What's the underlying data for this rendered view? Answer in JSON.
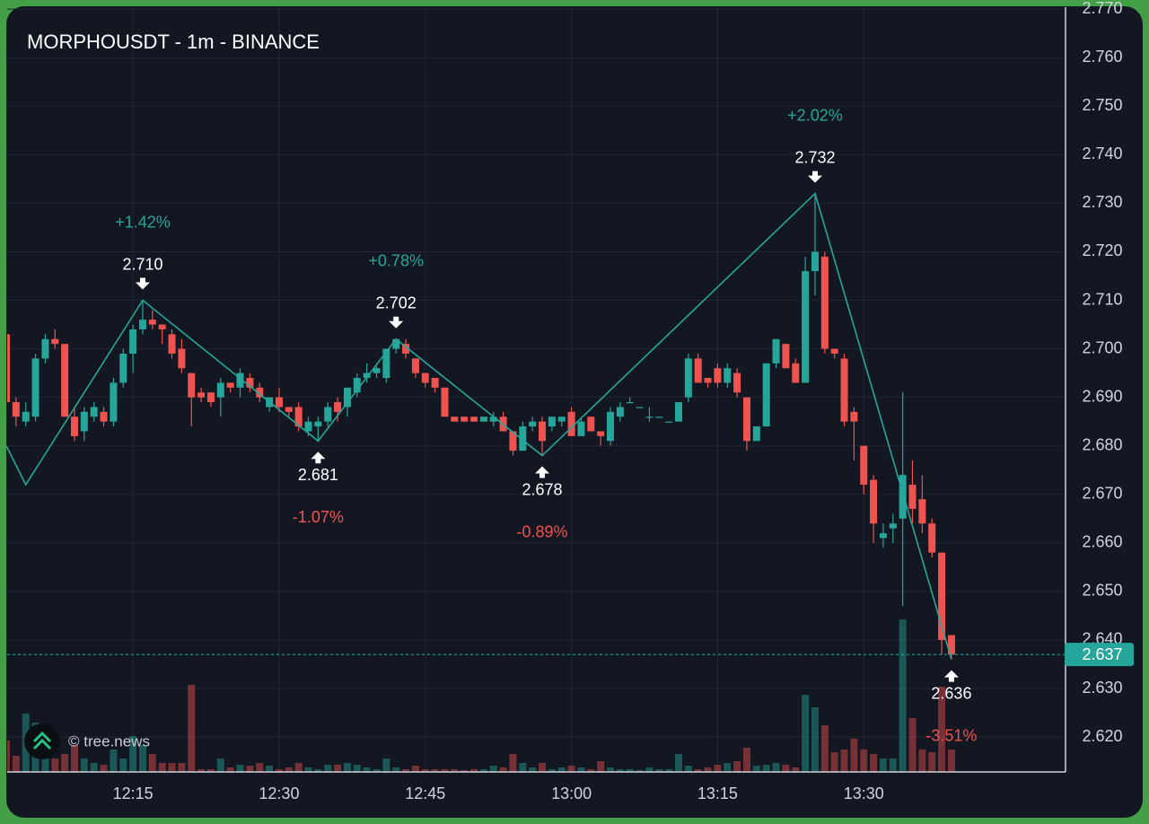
{
  "chart_data": {
    "type": "candlestick",
    "title": "MORPHOUSDT - 1m - BINANCE",
    "watermark": "© tree.news",
    "up_color": "#26a69a",
    "down_color": "#ef5350",
    "x": [
      "12:02",
      "12:03",
      "12:04",
      "12:05",
      "12:06",
      "12:07",
      "12:08",
      "12:09",
      "12:10",
      "12:11",
      "12:12",
      "12:13",
      "12:14",
      "12:15",
      "12:16",
      "12:17",
      "12:18",
      "12:19",
      "12:20",
      "12:21",
      "12:22",
      "12:23",
      "12:24",
      "12:25",
      "12:26",
      "12:27",
      "12:28",
      "12:29",
      "12:30",
      "12:31",
      "12:32",
      "12:33",
      "12:34",
      "12:35",
      "12:36",
      "12:37",
      "12:38",
      "12:39",
      "12:40",
      "12:41",
      "12:42",
      "12:43",
      "12:44",
      "12:45",
      "12:46",
      "12:47",
      "12:48",
      "12:49",
      "12:50",
      "12:51",
      "12:52",
      "12:53",
      "12:54",
      "12:55",
      "12:56",
      "12:57",
      "12:58",
      "12:59",
      "13:00",
      "13:01",
      "13:02",
      "13:03",
      "13:04",
      "13:05",
      "13:06",
      "13:07",
      "13:08",
      "13:09",
      "13:10",
      "13:11",
      "13:12",
      "13:13",
      "13:14",
      "13:15",
      "13:16",
      "13:17",
      "13:18",
      "13:19",
      "13:20",
      "13:21",
      "13:22",
      "13:23",
      "13:24",
      "13:25",
      "13:26",
      "13:27",
      "13:28",
      "13:29",
      "13:30",
      "13:31",
      "13:32",
      "13:33",
      "13:34",
      "13:35",
      "13:36",
      "13:37",
      "13:38",
      "13:39"
    ],
    "open": [
      2.703,
      2.689,
      2.685,
      2.686,
      2.698,
      2.702,
      2.701,
      2.686,
      2.683,
      2.686,
      2.687,
      2.685,
      2.693,
      2.699,
      2.704,
      2.706,
      2.705,
      2.703,
      2.7,
      2.695,
      2.691,
      2.691,
      2.69,
      2.693,
      2.692,
      2.694,
      2.692,
      2.688,
      2.69,
      2.688,
      2.688,
      2.683,
      2.684,
      2.685,
      2.689,
      2.688,
      2.691,
      2.694,
      2.695,
      2.694,
      2.7,
      2.701,
      2.698,
      2.695,
      2.694,
      2.692,
      2.686,
      2.686,
      2.686,
      2.685,
      2.685,
      2.686,
      2.683,
      2.679,
      2.684,
      2.685,
      2.684,
      2.685,
      2.687,
      2.682,
      2.686,
      2.683,
      2.681,
      2.686,
      2.689,
      2.688,
      2.686,
      2.686,
      2.685,
      2.685,
      2.69,
      2.698,
      2.694,
      2.696,
      2.693,
      2.695,
      2.69,
      2.681,
      2.684,
      2.697,
      2.701,
      2.697,
      2.693,
      2.716,
      2.719,
      2.7,
      2.698,
      2.687,
      2.68,
      2.673,
      2.661,
      2.663,
      2.665,
      2.672,
      2.669,
      2.664,
      2.658,
      2.641
    ],
    "high": [
      2.703,
      2.69,
      2.689,
      2.699,
      2.703,
      2.704,
      2.701,
      2.688,
      2.688,
      2.689,
      2.688,
      2.694,
      2.7,
      2.705,
      2.71,
      2.708,
      2.705,
      2.704,
      2.702,
      2.695,
      2.692,
      2.691,
      2.694,
      2.693,
      2.696,
      2.695,
      2.693,
      2.69,
      2.692,
      2.688,
      2.689,
      2.686,
      2.686,
      2.689,
      2.69,
      2.692,
      2.695,
      2.697,
      2.697,
      2.7,
      2.702,
      2.702,
      2.698,
      2.695,
      2.694,
      2.692,
      2.686,
      2.686,
      2.686,
      2.686,
      2.687,
      2.687,
      2.683,
      2.685,
      2.686,
      2.686,
      2.686,
      2.686,
      2.688,
      2.686,
      2.686,
      2.683,
      2.688,
      2.689,
      2.69,
      2.688,
      2.688,
      2.686,
      2.685,
      2.689,
      2.699,
      2.699,
      2.694,
      2.697,
      2.697,
      2.696,
      2.69,
      2.684,
      2.697,
      2.702,
      2.701,
      2.698,
      2.719,
      2.732,
      2.72,
      2.7,
      2.699,
      2.688,
      2.68,
      2.674,
      2.664,
      2.666,
      2.691,
      2.677,
      2.674,
      2.665,
      2.658,
      2.641
    ],
    "low": [
      2.685,
      2.684,
      2.684,
      2.685,
      2.697,
      2.7,
      2.686,
      2.681,
      2.681,
      2.685,
      2.684,
      2.684,
      2.692,
      2.695,
      2.703,
      2.704,
      2.701,
      2.698,
      2.695,
      2.684,
      2.689,
      2.688,
      2.686,
      2.691,
      2.69,
      2.691,
      2.689,
      2.687,
      2.687,
      2.686,
      2.683,
      2.682,
      2.681,
      2.684,
      2.685,
      2.686,
      2.69,
      2.693,
      2.694,
      2.693,
      2.699,
      2.698,
      2.694,
      2.692,
      2.691,
      2.686,
      2.685,
      2.685,
      2.685,
      2.685,
      2.684,
      2.683,
      2.678,
      2.679,
      2.683,
      2.678,
      2.683,
      2.684,
      2.682,
      2.682,
      2.683,
      2.68,
      2.68,
      2.685,
      2.689,
      2.688,
      2.685,
      2.686,
      2.685,
      2.685,
      2.689,
      2.693,
      2.692,
      2.692,
      2.692,
      2.69,
      2.679,
      2.681,
      2.684,
      2.696,
      2.696,
      2.693,
      2.693,
      2.711,
      2.699,
      2.698,
      2.684,
      2.677,
      2.67,
      2.66,
      2.659,
      2.66,
      2.647,
      2.664,
      2.662,
      2.657,
      2.637,
      2.636
    ],
    "close": [
      2.689,
      2.686,
      2.687,
      2.698,
      2.702,
      2.701,
      2.686,
      2.682,
      2.687,
      2.688,
      2.685,
      2.693,
      2.699,
      2.704,
      2.706,
      2.705,
      2.704,
      2.699,
      2.696,
      2.69,
      2.69,
      2.689,
      2.693,
      2.692,
      2.695,
      2.692,
      2.69,
      2.69,
      2.688,
      2.687,
      2.684,
      2.685,
      2.685,
      2.688,
      2.687,
      2.692,
      2.694,
      2.695,
      2.696,
      2.7,
      2.702,
      2.699,
      2.695,
      2.693,
      2.692,
      2.686,
      2.685,
      2.685,
      2.685,
      2.686,
      2.686,
      2.683,
      2.679,
      2.684,
      2.685,
      2.681,
      2.686,
      2.686,
      2.682,
      2.685,
      2.683,
      2.682,
      2.687,
      2.688,
      2.689,
      2.688,
      2.686,
      2.686,
      2.685,
      2.689,
      2.698,
      2.693,
      2.693,
      2.693,
      2.696,
      2.691,
      2.681,
      2.684,
      2.697,
      2.702,
      2.696,
      2.693,
      2.716,
      2.72,
      2.7,
      2.699,
      2.685,
      2.685,
      2.672,
      2.664,
      2.662,
      2.664,
      2.674,
      2.667,
      2.664,
      2.658,
      2.64,
      2.637
    ],
    "volume": [
      35,
      18,
      65,
      55,
      30,
      15,
      20,
      30,
      15,
      10,
      8,
      25,
      15,
      40,
      30,
      20,
      10,
      10,
      10,
      97,
      3,
      3,
      15,
      5,
      8,
      7,
      10,
      7,
      3,
      5,
      10,
      5,
      3,
      8,
      8,
      10,
      8,
      5,
      3,
      15,
      5,
      3,
      7,
      3,
      3,
      3,
      3,
      2,
      3,
      3,
      7,
      5,
      20,
      10,
      5,
      10,
      3,
      5,
      7,
      5,
      3,
      12,
      5,
      3,
      3,
      2,
      5,
      3,
      3,
      20,
      7,
      3,
      5,
      8,
      10,
      12,
      27,
      7,
      8,
      10,
      8,
      5,
      86,
      72,
      52,
      22,
      25,
      37,
      25,
      20,
      15,
      15,
      170,
      60,
      25,
      22,
      95,
      25
    ],
    "ylim": [
      2.6128,
      2.7704
    ],
    "yticks": [
      {
        "value": 2.77,
        "label": "2.770"
      },
      {
        "value": 2.76,
        "label": "2.760"
      },
      {
        "value": 2.75,
        "label": "2.750"
      },
      {
        "value": 2.74,
        "label": "2.740"
      },
      {
        "value": 2.73,
        "label": "2.730"
      },
      {
        "value": 2.72,
        "label": "2.720"
      },
      {
        "value": 2.71,
        "label": "2.710"
      },
      {
        "value": 2.7,
        "label": "2.700"
      },
      {
        "value": 2.69,
        "label": "2.690"
      },
      {
        "value": 2.68,
        "label": "2.680"
      },
      {
        "value": 2.67,
        "label": "2.670"
      },
      {
        "value": 2.66,
        "label": "2.660"
      },
      {
        "value": 2.65,
        "label": "2.650"
      },
      {
        "value": 2.64,
        "label": "2.640"
      },
      {
        "value": 2.63,
        "label": "2.630"
      },
      {
        "value": 2.62,
        "label": "2.620"
      }
    ],
    "xticks": [
      "12:15",
      "12:30",
      "12:45",
      "13:00",
      "13:15",
      "13:30"
    ],
    "grid": true,
    "current_price": {
      "value": 2.637,
      "label": "2.637"
    },
    "pivots": [
      {
        "x": "12:02",
        "value": 2.68
      },
      {
        "x": "12:04",
        "value": 2.672
      },
      {
        "x": "12:16",
        "value": 2.71,
        "label": "2.710",
        "change": {
          "value": 1.42,
          "label": "+1.42%"
        }
      },
      {
        "x": "12:34",
        "value": 2.681,
        "label": "2.681",
        "change": {
          "value": -1.07,
          "label": "-1.07%"
        }
      },
      {
        "x": "12:42",
        "value": 2.702,
        "label": "2.702",
        "change": {
          "value": 0.78,
          "label": "+0.78%"
        }
      },
      {
        "x": "12:57",
        "value": 2.678,
        "label": "2.678",
        "change": {
          "value": -0.89,
          "label": "-0.89%"
        }
      },
      {
        "x": "13:25",
        "value": 2.732,
        "label": "2.732",
        "change": {
          "value": 2.02,
          "label": "+2.02%"
        }
      },
      {
        "x": "13:39",
        "value": 2.636,
        "label": "2.636",
        "change": {
          "value": -3.51,
          "label": "-3.51%"
        }
      }
    ]
  }
}
